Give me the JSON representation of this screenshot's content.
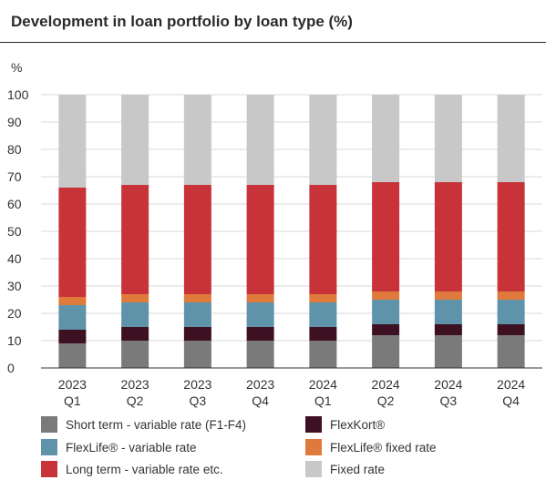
{
  "chart_data": {
    "type": "bar",
    "stacked": true,
    "title": "Development in loan portfolio by loan type (%)",
    "ylabel": "%",
    "xlabel": "",
    "ylim": [
      0,
      100
    ],
    "yticks": [
      0,
      10,
      20,
      30,
      40,
      50,
      60,
      70,
      80,
      90,
      100
    ],
    "grid": true,
    "legend_position": "bottom",
    "categories": [
      [
        "2023",
        "Q1"
      ],
      [
        "2023",
        "Q2"
      ],
      [
        "2023",
        "Q3"
      ],
      [
        "2023",
        "Q4"
      ],
      [
        "2024",
        "Q1"
      ],
      [
        "2024",
        "Q2"
      ],
      [
        "2024",
        "Q3"
      ],
      [
        "2024",
        "Q4"
      ]
    ],
    "series": [
      {
        "name": "Short term - variable rate (F1-F4)",
        "color": "#7a7a7a",
        "values": [
          9,
          10,
          10,
          10,
          10,
          12,
          12,
          12
        ]
      },
      {
        "name": "FlexKort®",
        "color": "#3d1022",
        "values": [
          5,
          5,
          5,
          5,
          5,
          4,
          4,
          4
        ]
      },
      {
        "name": "FlexLife® - variable rate",
        "color": "#5e93aa",
        "values": [
          9,
          9,
          9,
          9,
          9,
          9,
          9,
          9
        ]
      },
      {
        "name": "FlexLife® fixed rate",
        "color": "#e07a3c",
        "values": [
          3,
          3,
          3,
          3,
          3,
          3,
          3,
          3
        ]
      },
      {
        "name": "Long term - variable rate etc.",
        "color": "#c8333a",
        "values": [
          40,
          40,
          40,
          40,
          40,
          40,
          40,
          40
        ]
      },
      {
        "name": "Fixed rate",
        "color": "#c8c8c8",
        "values": [
          34,
          33,
          33,
          33,
          33,
          32,
          32,
          32
        ]
      }
    ],
    "legend_order": [
      0,
      1,
      2,
      3,
      4,
      5
    ]
  }
}
